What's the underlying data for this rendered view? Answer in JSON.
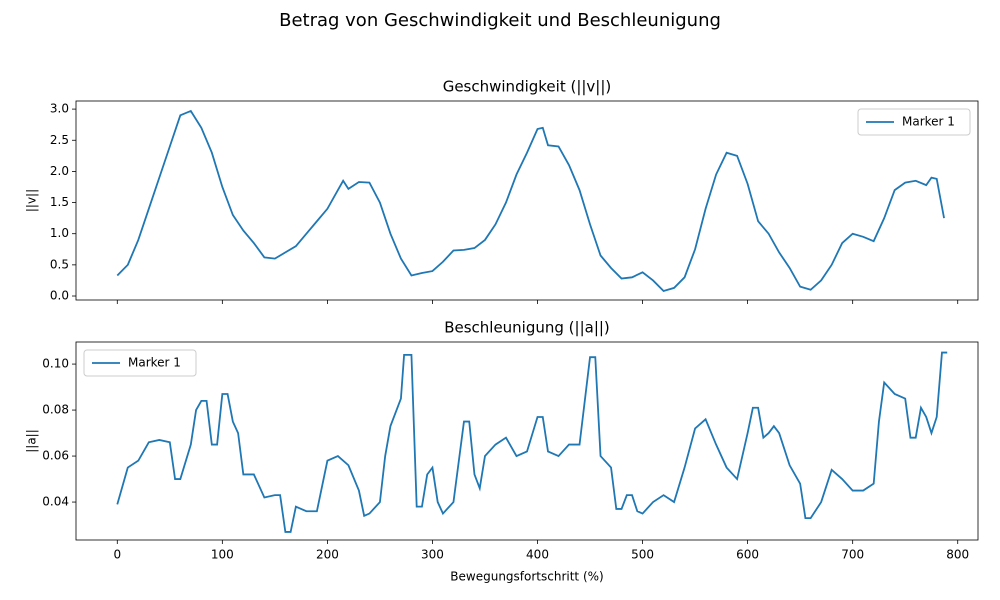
{
  "title": "Betrag von Geschwindigkeit und Beschleunigung",
  "chart_data": [
    {
      "type": "line",
      "title": "Geschwindigkeit (||v||)",
      "ylabel": "||v||",
      "x": [
        0,
        10,
        20,
        30,
        40,
        50,
        60,
        70,
        80,
        90,
        100,
        110,
        120,
        130,
        140,
        150,
        160,
        170,
        180,
        190,
        200,
        210,
        215,
        220,
        230,
        240,
        250,
        260,
        270,
        280,
        290,
        300,
        310,
        320,
        330,
        340,
        350,
        360,
        370,
        380,
        390,
        400,
        405,
        410,
        420,
        430,
        440,
        450,
        460,
        470,
        480,
        490,
        500,
        510,
        520,
        530,
        540,
        550,
        560,
        570,
        580,
        590,
        600,
        610,
        620,
        630,
        640,
        650,
        660,
        670,
        680,
        690,
        700,
        710,
        720,
        730,
        740,
        750,
        760,
        770,
        775,
        780,
        787
      ],
      "series": [
        {
          "name": "Marker 1",
          "color": "#1f77b4",
          "values": [
            0.33,
            0.5,
            0.9,
            1.4,
            1.9,
            2.4,
            2.9,
            2.97,
            2.7,
            2.3,
            1.75,
            1.3,
            1.05,
            0.85,
            0.62,
            0.6,
            0.7,
            0.8,
            1.0,
            1.2,
            1.4,
            1.7,
            1.85,
            1.72,
            1.83,
            1.82,
            1.5,
            1.0,
            0.6,
            0.33,
            0.37,
            0.4,
            0.55,
            0.73,
            0.74,
            0.77,
            0.9,
            1.15,
            1.5,
            1.95,
            2.3,
            2.68,
            2.7,
            2.42,
            2.4,
            2.1,
            1.7,
            1.15,
            0.65,
            0.45,
            0.28,
            0.3,
            0.38,
            0.25,
            0.08,
            0.13,
            0.3,
            0.75,
            1.4,
            1.95,
            2.3,
            2.25,
            1.8,
            1.2,
            1.0,
            0.7,
            0.45,
            0.15,
            0.1,
            0.25,
            0.5,
            0.85,
            1.0,
            0.95,
            0.88,
            1.25,
            1.7,
            1.82,
            1.85,
            1.78,
            1.9,
            1.88,
            1.25
          ]
        }
      ],
      "xlim": [
        -39.3,
        819.3
      ],
      "xticks": [
        0,
        100,
        200,
        300,
        400,
        500,
        600,
        700,
        800
      ],
      "ylim": [
        -0.064,
        3.13
      ],
      "yticks": [
        {
          "value": 0,
          "label": "0.0"
        },
        0.5,
        {
          "value": 1,
          "label": "1.0"
        },
        1.5,
        {
          "value": 2,
          "label": "2.0"
        },
        2.5,
        {
          "value": 3,
          "label": "3.0"
        }
      ],
      "legend": "upper right",
      "grid": false
    },
    {
      "type": "line",
      "title": "Beschleunigung (||a||)",
      "ylabel": "||a||",
      "xlabel": "Bewegungsfortschritt (%)",
      "x": [
        0,
        10,
        20,
        30,
        40,
        50,
        55,
        60,
        70,
        75,
        80,
        85,
        90,
        95,
        100,
        105,
        110,
        115,
        120,
        130,
        140,
        150,
        155,
        160,
        165,
        170,
        180,
        190,
        200,
        210,
        220,
        230,
        235,
        240,
        250,
        255,
        260,
        270,
        273,
        280,
        285,
        290,
        295,
        300,
        305,
        310,
        320,
        330,
        335,
        340,
        345,
        350,
        360,
        370,
        380,
        390,
        400,
        405,
        410,
        420,
        430,
        440,
        450,
        455,
        460,
        470,
        475,
        480,
        485,
        490,
        495,
        500,
        510,
        520,
        530,
        540,
        550,
        560,
        570,
        580,
        590,
        600,
        605,
        610,
        615,
        620,
        625,
        630,
        640,
        650,
        655,
        660,
        670,
        680,
        690,
        700,
        710,
        720,
        725,
        730,
        740,
        750,
        755,
        760,
        765,
        770,
        775,
        780,
        785,
        790
      ],
      "series": [
        {
          "name": "Marker 1",
          "color": "#1f77b4",
          "values": [
            0.039,
            0.055,
            0.058,
            0.066,
            0.067,
            0.066,
            0.05,
            0.05,
            0.065,
            0.08,
            0.084,
            0.084,
            0.065,
            0.065,
            0.087,
            0.087,
            0.075,
            0.07,
            0.052,
            0.052,
            0.042,
            0.043,
            0.043,
            0.027,
            0.027,
            0.038,
            0.036,
            0.036,
            0.058,
            0.06,
            0.056,
            0.045,
            0.034,
            0.035,
            0.04,
            0.06,
            0.073,
            0.085,
            0.104,
            0.104,
            0.038,
            0.038,
            0.052,
            0.055,
            0.04,
            0.035,
            0.04,
            0.075,
            0.075,
            0.052,
            0.046,
            0.06,
            0.065,
            0.068,
            0.06,
            0.062,
            0.077,
            0.077,
            0.062,
            0.06,
            0.065,
            0.065,
            0.103,
            0.103,
            0.06,
            0.055,
            0.037,
            0.037,
            0.043,
            0.043,
            0.036,
            0.035,
            0.04,
            0.043,
            0.04,
            0.055,
            0.072,
            0.076,
            0.065,
            0.055,
            0.05,
            0.07,
            0.081,
            0.081,
            0.068,
            0.07,
            0.073,
            0.07,
            0.056,
            0.048,
            0.033,
            0.033,
            0.04,
            0.054,
            0.05,
            0.045,
            0.045,
            0.048,
            0.075,
            0.092,
            0.087,
            0.085,
            0.068,
            0.068,
            0.081,
            0.077,
            0.07,
            0.077,
            0.105,
            0.105
          ]
        }
      ],
      "xlim": [
        -39.3,
        819.3
      ],
      "xticks": [
        0,
        100,
        200,
        300,
        400,
        500,
        600,
        700,
        800
      ],
      "ylim": [
        0.0235,
        0.1096
      ],
      "yticks": [
        0.04,
        0.06,
        0.08,
        {
          "value": 0.1,
          "label": "0.10"
        }
      ],
      "legend": "upper left",
      "grid": false
    }
  ]
}
